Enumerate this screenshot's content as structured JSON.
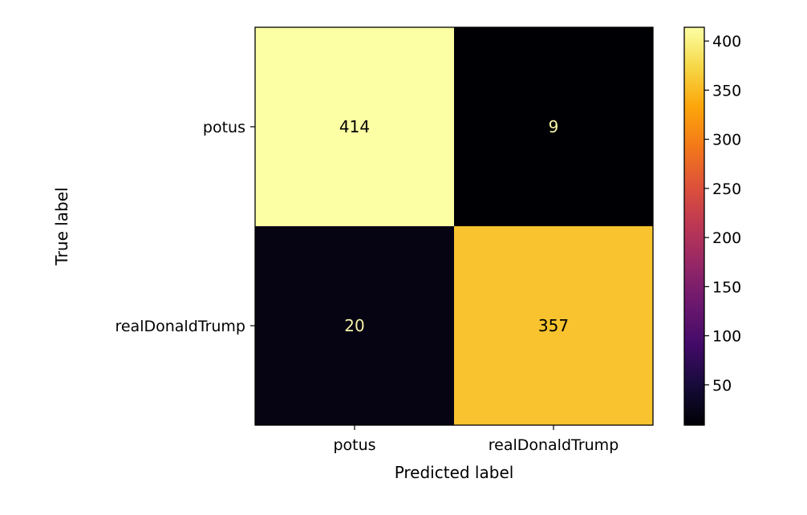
{
  "chart_data": {
    "type": "heatmap",
    "title": "",
    "xlabel": "Predicted label",
    "ylabel": "True label",
    "x_categories": [
      "potus",
      "realDonaldTrump"
    ],
    "y_categories": [
      "potus",
      "realDonaldTrump"
    ],
    "values": [
      [
        414,
        9
      ],
      [
        20,
        357
      ]
    ],
    "colormap": "inferno",
    "colorbar": {
      "ticks": [
        50,
        100,
        150,
        200,
        250,
        300,
        350,
        400
      ],
      "range": [
        9,
        414
      ]
    },
    "cell_text_colors": {
      "dark": "#000000",
      "light": "#f5f2a8"
    },
    "grid": false
  }
}
